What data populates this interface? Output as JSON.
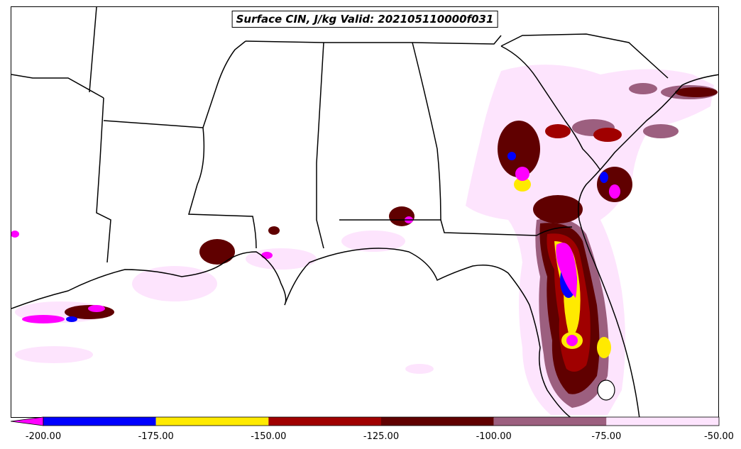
{
  "title": "Surface CIN, J/kg Valid: 202105110000f031",
  "colorbar": {
    "extend": "min",
    "under_color": "#ff00ff",
    "bins": [
      {
        "from": -200,
        "to": -175,
        "color": "#0000ff"
      },
      {
        "from": -175,
        "to": -150,
        "color": "#ffea00"
      },
      {
        "from": -150,
        "to": -125,
        "color": "#a00000"
      },
      {
        "from": -125,
        "to": -100,
        "color": "#600000"
      },
      {
        "from": -100,
        "to": -75,
        "color": "#9c5f7f"
      },
      {
        "from": -75,
        "to": -50,
        "color": "#fde4fd"
      }
    ],
    "tick_labels": [
      "-200.00",
      "-175.00",
      "-150.00",
      "-125.00",
      "-100.00",
      "-75.00",
      "-50.00"
    ]
  }
}
